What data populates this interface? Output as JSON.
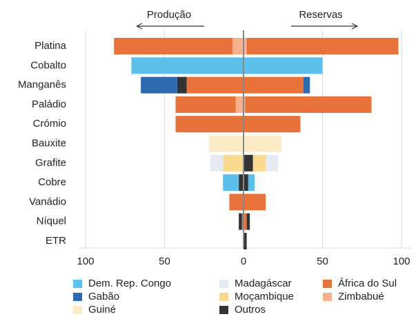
{
  "chart_data": {
    "type": "butterfly_bar",
    "left_label": "Produção",
    "right_label": "Reservas",
    "categories": [
      "Platina",
      "Cobalto",
      "Manganês",
      "Paládio",
      "Crómio",
      "Bauxite",
      "Grafite",
      "Cobre",
      "Vanádio",
      "Níquel",
      "ETR"
    ],
    "xlim": [
      -100,
      100
    ],
    "xticks": [
      {
        "value": -100,
        "label": "100"
      },
      {
        "value": -50,
        "label": "50"
      },
      0,
      50,
      100
    ],
    "grid": true,
    "series": [
      {
        "name": "Zimbabué",
        "color": "#f6b08f",
        "production": [
          7,
          0,
          0,
          5,
          0,
          0,
          0,
          0,
          0,
          0,
          0
        ],
        "reserves": [
          2,
          0,
          0,
          1,
          0,
          0,
          0,
          0,
          0,
          0,
          0
        ]
      },
      {
        "name": "África do Sul",
        "color": "#e8733a",
        "production": [
          75,
          0,
          36,
          38,
          43,
          0,
          0,
          0,
          9,
          1,
          0
        ],
        "reserves": [
          96,
          0,
          38,
          80,
          36,
          0,
          0,
          0,
          14,
          2,
          0
        ]
      },
      {
        "name": "Outros",
        "color": "#333333",
        "production": [
          0,
          0,
          6,
          0,
          0,
          0,
          0,
          3,
          0,
          2,
          0
        ],
        "reserves": [
          0,
          0,
          0,
          0,
          0,
          0,
          6,
          3,
          0,
          2,
          2
        ]
      },
      {
        "name": "Gabão",
        "color": "#2e6aad",
        "production": [
          0,
          0,
          23,
          0,
          0,
          0,
          0,
          0,
          0,
          0,
          0
        ],
        "reserves": [
          0,
          0,
          4,
          0,
          0,
          0,
          0,
          0,
          0,
          0,
          0
        ]
      },
      {
        "name": "Dem. Rep. Congo",
        "color": "#5bc0eb",
        "production": [
          0,
          71,
          0,
          0,
          0,
          0,
          0,
          10,
          0,
          0,
          0
        ],
        "reserves": [
          0,
          50,
          0,
          0,
          0,
          0,
          0,
          4,
          0,
          0,
          0
        ]
      },
      {
        "name": "Moçambique",
        "color": "#fbd98f",
        "production": [
          0,
          0,
          0,
          0,
          0,
          0,
          13,
          0,
          0,
          0,
          0
        ],
        "reserves": [
          0,
          0,
          0,
          0,
          0,
          0,
          8,
          0,
          0,
          0,
          0
        ]
      },
      {
        "name": "Madagáscar",
        "color": "#e4ebf5",
        "production": [
          0,
          0,
          0,
          0,
          0,
          0,
          8,
          0,
          0,
          0,
          0
        ],
        "reserves": [
          0,
          0,
          0,
          0,
          0,
          0,
          8,
          0,
          0,
          0,
          0
        ]
      },
      {
        "name": "Guiné",
        "color": "#fdebc8",
        "production": [
          0,
          0,
          0,
          0,
          0,
          22,
          0,
          0,
          0,
          0,
          0
        ],
        "reserves": [
          0,
          0,
          0,
          0,
          0,
          24,
          0,
          0,
          0,
          0,
          0
        ]
      }
    ]
  }
}
